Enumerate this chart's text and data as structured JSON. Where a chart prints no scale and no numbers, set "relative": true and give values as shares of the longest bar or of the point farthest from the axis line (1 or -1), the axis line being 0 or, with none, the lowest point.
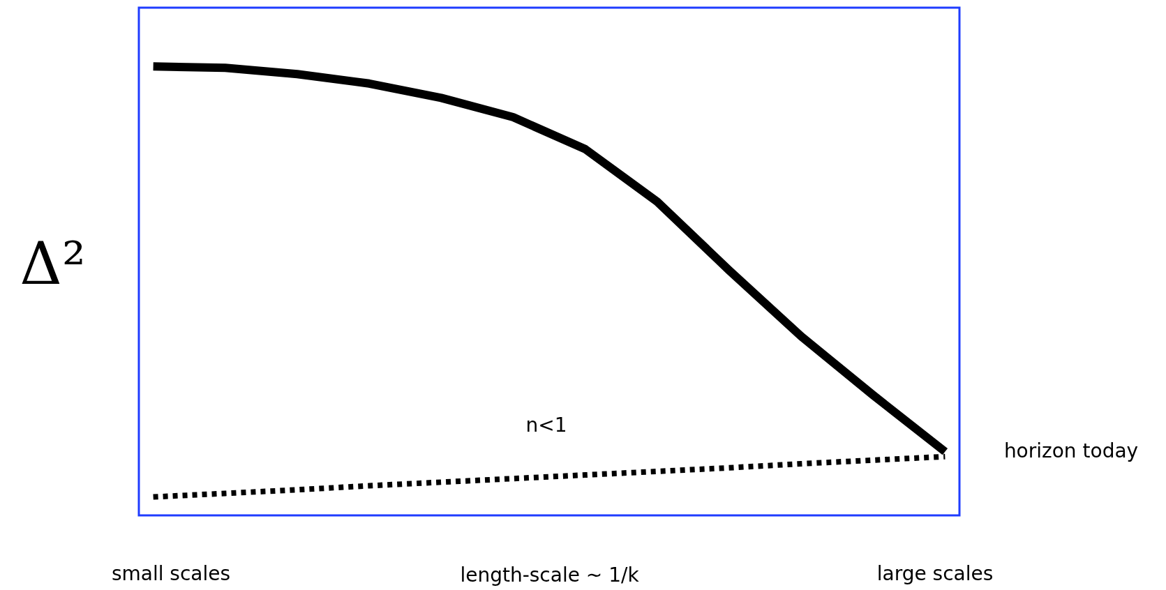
{
  "chart_data": {
    "type": "line",
    "relative": true,
    "xlabel": "length-scale ~ 1/k",
    "ylabel": "Δ²",
    "categories": [
      null,
      null,
      null,
      null,
      null,
      null,
      null,
      null,
      null,
      null,
      null,
      null
    ],
    "series": [
      {
        "color": "#000000",
        "line_style": "solid",
        "values": [
          1.0,
          0.997,
          0.983,
          0.962,
          0.93,
          0.887,
          0.816,
          0.699,
          0.546,
          0.399,
          0.268,
          0.142
        ]
      },
      {
        "color": "#000000",
        "line_style": "dotted",
        "values": [
          0.041,
          0.049,
          0.057,
          0.066,
          0.074,
          0.082,
          0.09,
          0.098,
          0.106,
          0.115,
          0.123,
          0.131
        ]
      }
    ],
    "annotations": [
      "small scales",
      "large scales",
      "n<1",
      "horizon today"
    ]
  }
}
